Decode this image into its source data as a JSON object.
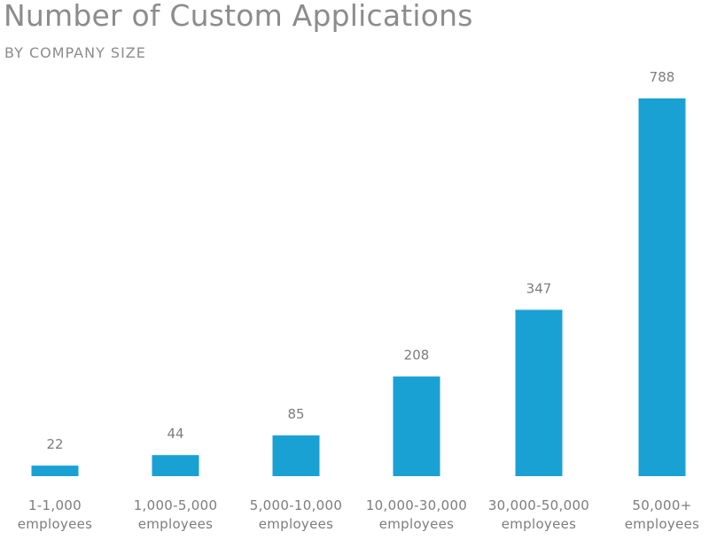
{
  "chart_data": {
    "type": "bar",
    "title": "Number of Custom Applications",
    "subtitle": "BY COMPANY SIZE",
    "xlabel": "",
    "ylabel": "",
    "categories": [
      [
        "1-1,000",
        "employees"
      ],
      [
        "1,000-5,000",
        "employees"
      ],
      [
        "5,000-10,000",
        "employees"
      ],
      [
        "10,000-30,000",
        "employees"
      ],
      [
        "30,000-50,000",
        "employees"
      ],
      [
        "50,000+",
        "employees"
      ]
    ],
    "values": [
      22,
      44,
      85,
      208,
      347,
      788
    ],
    "ylim": [
      0,
      788
    ],
    "grid": false,
    "legend": "none",
    "bar_color": "#1aa1d4"
  }
}
